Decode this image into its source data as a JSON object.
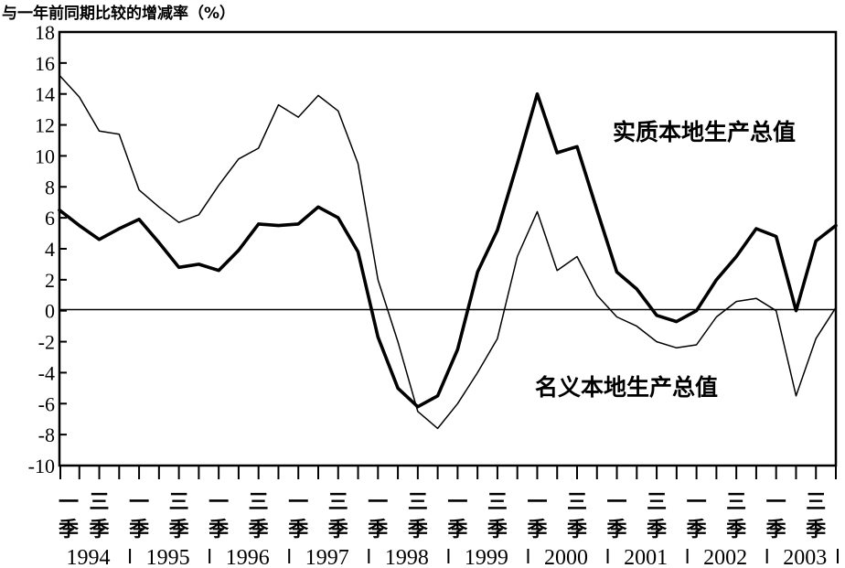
{
  "chart_data": {
    "type": "line",
    "title": "与一年前同期比较的增减率（%）",
    "ylim": [
      -10,
      18
    ],
    "y_ticks": [
      "18",
      "16",
      "14",
      "12",
      "10",
      "8",
      "6",
      "4",
      "2",
      "0",
      "-2",
      "-4",
      "-6",
      "-8",
      "-10"
    ],
    "quarter_labels": [
      "一\n季",
      "三\n季",
      "一\n季",
      "三\n季",
      "一\n季",
      "三\n季",
      "一\n季",
      "三\n季",
      "一\n季",
      "三\n季",
      "一\n季",
      "三\n季",
      "一\n季",
      "三\n季",
      "一\n季",
      "三\n季",
      "一\n季",
      "三\n季",
      "一\n季",
      "三\n季"
    ],
    "years": [
      "1994",
      "1995",
      "1996",
      "1997",
      "1998",
      "1999",
      "2000",
      "2001",
      "2002",
      "2003"
    ],
    "x_quarters": [
      "1994Q1",
      "1994Q2",
      "1994Q3",
      "1994Q4",
      "1995Q1",
      "1995Q2",
      "1995Q3",
      "1995Q4",
      "1996Q1",
      "1996Q2",
      "1996Q3",
      "1996Q4",
      "1997Q1",
      "1997Q2",
      "1997Q3",
      "1997Q4",
      "1998Q1",
      "1998Q2",
      "1998Q3",
      "1998Q4",
      "1999Q1",
      "1999Q2",
      "1999Q3",
      "1999Q4",
      "2000Q1",
      "2000Q2",
      "2000Q3",
      "2000Q4",
      "2001Q1",
      "2001Q2",
      "2001Q3",
      "2001Q4",
      "2002Q1",
      "2002Q2",
      "2002Q3",
      "2002Q4",
      "2003Q1",
      "2003Q2",
      "2003Q3",
      "2003Q4"
    ],
    "series": [
      {
        "name": "实质本地生产总值",
        "values": [
          6.5,
          5.5,
          4.6,
          5.3,
          5.9,
          4.4,
          2.8,
          3.0,
          2.6,
          3.9,
          5.6,
          5.5,
          5.6,
          6.7,
          6.0,
          3.8,
          -1.7,
          -5.0,
          -6.2,
          -5.5,
          -2.5,
          2.5,
          5.2,
          9.5,
          14.0,
          10.2,
          10.6,
          6.5,
          2.5,
          1.4,
          -0.3,
          -0.7,
          0.0,
          2.0,
          3.5,
          5.3,
          4.8,
          0.0,
          4.5,
          5.5
        ],
        "color": "#000000",
        "line_weight": "heavy"
      },
      {
        "name": "名义本地生产总值",
        "values": [
          15.2,
          13.8,
          11.6,
          11.4,
          7.8,
          6.7,
          5.7,
          6.2,
          8.1,
          9.8,
          10.5,
          13.3,
          12.5,
          13.9,
          12.9,
          9.5,
          2.0,
          -2.0,
          -6.5,
          -7.6,
          -6.0,
          -4.0,
          -1.8,
          3.5,
          6.4,
          2.6,
          3.5,
          1.0,
          -0.4,
          -1.0,
          -2.0,
          -2.4,
          -2.2,
          -0.4,
          0.6,
          0.8,
          0.0,
          -5.5,
          -1.8,
          0.2
        ],
        "color": "#000000",
        "line_weight": "light"
      }
    ],
    "annotations": [
      "实质本地生产总值",
      "名义本地生产总值"
    ],
    "grid": false,
    "legend": "none"
  }
}
